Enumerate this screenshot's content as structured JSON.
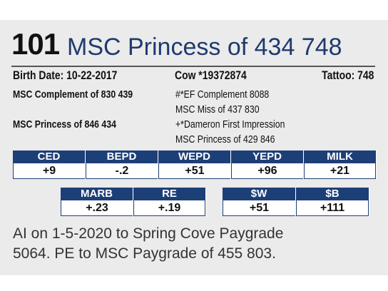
{
  "header": {
    "lot": "101",
    "name": "MSC Princess of 434 748"
  },
  "info": {
    "birth_date": "Birth Date: 10-22-2017",
    "registration": "Cow *19372874",
    "tattoo": "Tattoo: 748"
  },
  "pedigree": {
    "left": [
      "MSC Complement of 830 439",
      "MSC Princess of 846 434"
    ],
    "right": [
      "#*EF Complement 8088",
      "MSC Miss of 437 830",
      "+*Dameron First Impression",
      "MSC Princess of 429 846"
    ]
  },
  "epd": {
    "headers": [
      "CED",
      "BEPD",
      "WEPD",
      "YEPD",
      "MILK"
    ],
    "values": [
      "+9",
      "-.2",
      "+51",
      "+96",
      "+21"
    ]
  },
  "carcass": {
    "headers": [
      "MARB",
      "RE"
    ],
    "values": [
      "+.23",
      "+.19"
    ]
  },
  "indexes": {
    "headers": [
      "$W",
      "$B"
    ],
    "values": [
      "+51",
      "+111"
    ]
  },
  "note": [
    "AI on 1-5-2020 to Spring Cove Paygrade",
    "5064. PE to MSC Paygrade of 455 803."
  ]
}
